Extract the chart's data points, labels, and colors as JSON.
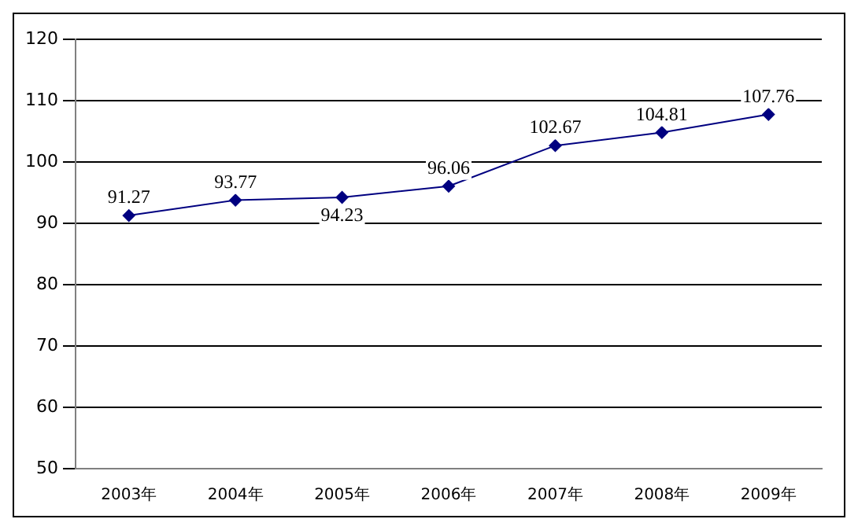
{
  "chart_data": {
    "type": "line",
    "categories": [
      "2003年",
      "2004年",
      "2005年",
      "2006年",
      "2007年",
      "2008年",
      "2009年"
    ],
    "series": [
      {
        "color": "#000080",
        "values": [
          91.27,
          93.77,
          94.23,
          96.06,
          102.67,
          104.81,
          107.76
        ]
      }
    ],
    "ylim": [
      50,
      120
    ],
    "yticks": [
      50,
      60,
      70,
      80,
      90,
      100,
      110,
      120
    ],
    "grid": "y",
    "legend": false,
    "marker": "diamond",
    "line_style": "solid",
    "data_labels": true
  }
}
